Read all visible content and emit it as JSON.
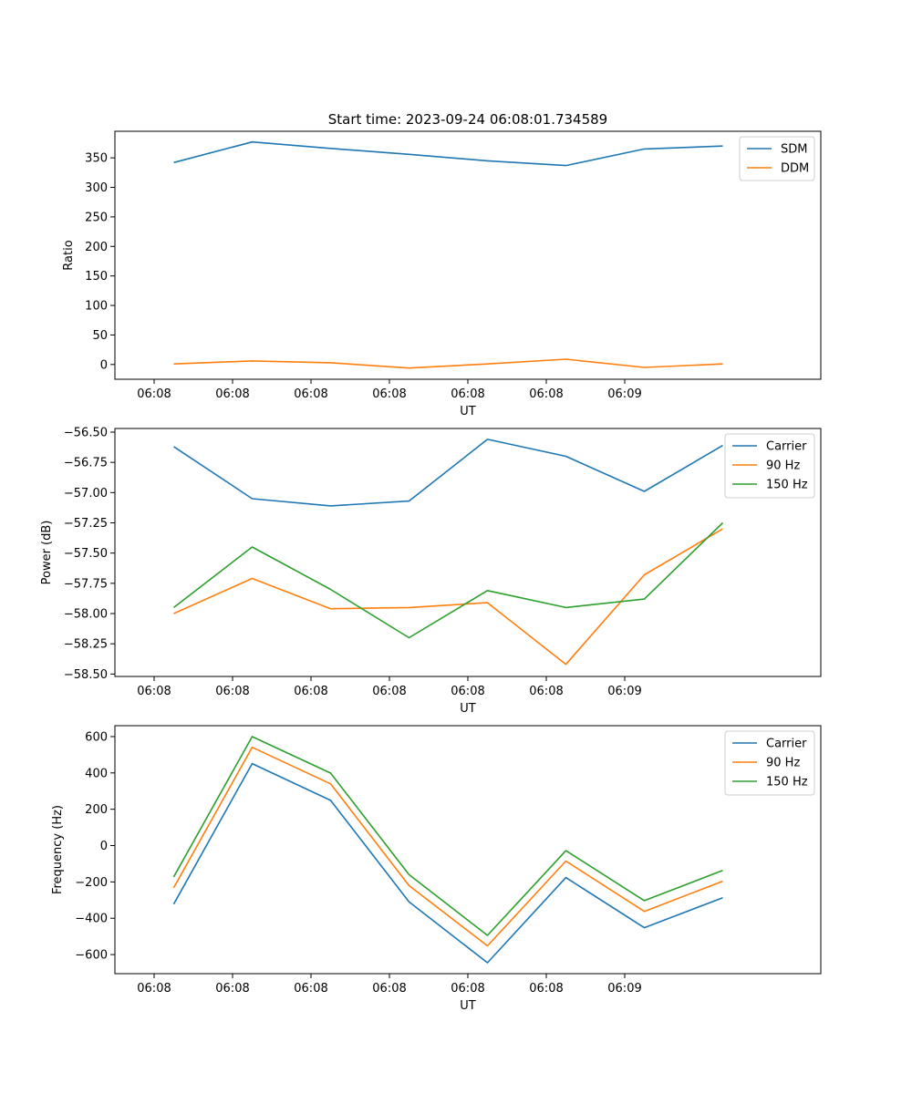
{
  "figure_title": "Start time: 2023-09-24 06:08:01.734589",
  "chart_data": [
    {
      "type": "line",
      "xlabel": "UT",
      "ylabel": "Ratio",
      "x_ticks": [
        "06:08",
        "06:08",
        "06:08",
        "06:08",
        "06:08",
        "06:08",
        "06:09"
      ],
      "xlim": [
        -0.5,
        8.5
      ],
      "x": [
        0.25,
        1.25,
        2.25,
        3.25,
        4.25,
        5.25,
        6.25,
        7.25
      ],
      "ylim": [
        -25,
        395
      ],
      "yticks": [
        0,
        50,
        100,
        150,
        200,
        250,
        300,
        350
      ],
      "ytick_labels": [
        "0",
        "50",
        "100",
        "150",
        "200",
        "250",
        "300",
        "350"
      ],
      "legend_position": "top-right",
      "series": [
        {
          "name": "SDM",
          "color": "#1f77b4",
          "values": [
            342,
            377,
            366,
            356,
            345,
            337,
            365,
            370
          ]
        },
        {
          "name": "DDM",
          "color": "#ff7f0e",
          "values": [
            1,
            6,
            3,
            -6,
            1,
            9,
            -5,
            1
          ]
        }
      ]
    },
    {
      "type": "line",
      "xlabel": "UT",
      "ylabel": "Power (dB)",
      "x_ticks": [
        "06:08",
        "06:08",
        "06:08",
        "06:08",
        "06:08",
        "06:08",
        "06:09"
      ],
      "xlim": [
        -0.5,
        8.5
      ],
      "x": [
        0.25,
        1.25,
        2.25,
        3.25,
        4.25,
        5.25,
        6.25,
        7.25
      ],
      "ylim": [
        -58.52,
        -56.47
      ],
      "yticks": [
        -56.5,
        -56.75,
        -57.0,
        -57.25,
        -57.5,
        -57.75,
        -58.0,
        -58.25,
        -58.5
      ],
      "ytick_labels": [
        "−56.50",
        "−56.75",
        "−57.00",
        "−57.25",
        "−57.50",
        "−57.75",
        "−58.00",
        "−58.25",
        "−58.50"
      ],
      "legend_position": "top-right",
      "series": [
        {
          "name": "Carrier",
          "color": "#1f77b4",
          "values": [
            -56.62,
            -57.05,
            -57.11,
            -57.07,
            -56.56,
            -56.7,
            -56.99,
            -56.61
          ]
        },
        {
          "name": "90 Hz",
          "color": "#ff7f0e",
          "values": [
            -58.0,
            -57.71,
            -57.96,
            -57.95,
            -57.91,
            -58.42,
            -57.68,
            -57.3
          ]
        },
        {
          "name": "150 Hz",
          "color": "#2ca02c",
          "values": [
            -57.95,
            -57.45,
            -57.8,
            -58.2,
            -57.81,
            -57.95,
            -57.88,
            -57.25
          ]
        }
      ]
    },
    {
      "type": "line",
      "xlabel": "UT",
      "ylabel": "Frequency (Hz)",
      "x_ticks": [
        "06:08",
        "06:08",
        "06:08",
        "06:08",
        "06:08",
        "06:08",
        "06:09"
      ],
      "xlim": [
        -0.5,
        8.5
      ],
      "x": [
        0.25,
        1.25,
        2.25,
        3.25,
        4.25,
        5.25,
        6.25,
        7.25
      ],
      "ylim": [
        -705,
        660
      ],
      "yticks": [
        600,
        400,
        200,
        0,
        -200,
        -400,
        -600
      ],
      "ytick_labels": [
        "600",
        "400",
        "200",
        "0",
        "−200",
        "−400",
        "−600"
      ],
      "legend_position": "top-right",
      "series": [
        {
          "name": "Carrier",
          "color": "#1f77b4",
          "values": [
            -322,
            451,
            249,
            -310,
            -645,
            -176,
            -452,
            -287
          ]
        },
        {
          "name": "90 Hz",
          "color": "#ff7f0e",
          "values": [
            -232,
            541,
            340,
            -220,
            -552,
            -85,
            -362,
            -196
          ]
        },
        {
          "name": "150 Hz",
          "color": "#2ca02c",
          "values": [
            -172,
            600,
            399,
            -160,
            -494,
            -28,
            -303,
            -137
          ]
        }
      ]
    }
  ]
}
